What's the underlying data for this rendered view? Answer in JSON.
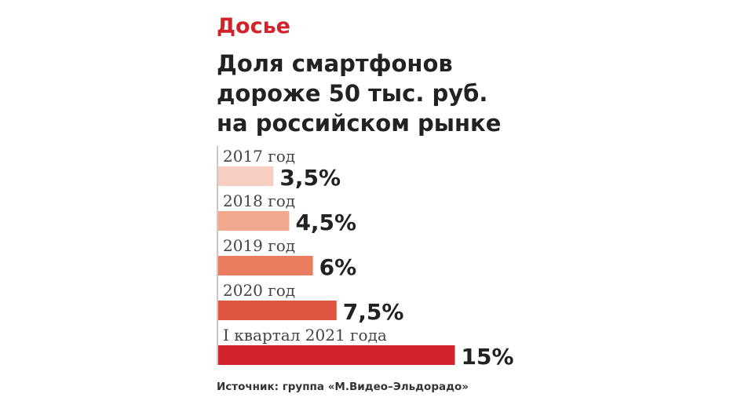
{
  "kicker": "Досье",
  "title_lines": [
    "Доля смартфонов",
    "дороже 50 тыс. руб.",
    "на российском рынке"
  ],
  "source": "Источник: группа «М.Видео–Эльдорадо»",
  "colors": {
    "accent": "#d2232a",
    "bars": [
      "#f6cfc2",
      "#f1a88d",
      "#ea7c60",
      "#e0553d",
      "#d2232a"
    ]
  },
  "chart_data": {
    "type": "bar",
    "orientation": "horizontal",
    "categories": [
      "2017 год",
      "2018 год",
      "2019 год",
      "2020 год",
      "I квартал 2021 года"
    ],
    "values": [
      3.5,
      4.5,
      6,
      7.5,
      15
    ],
    "value_labels": [
      "3,5%",
      "4,5%",
      "6%",
      "7,5%",
      "15%"
    ],
    "unit": "%",
    "xlim": [
      0,
      15
    ],
    "grid": false
  }
}
